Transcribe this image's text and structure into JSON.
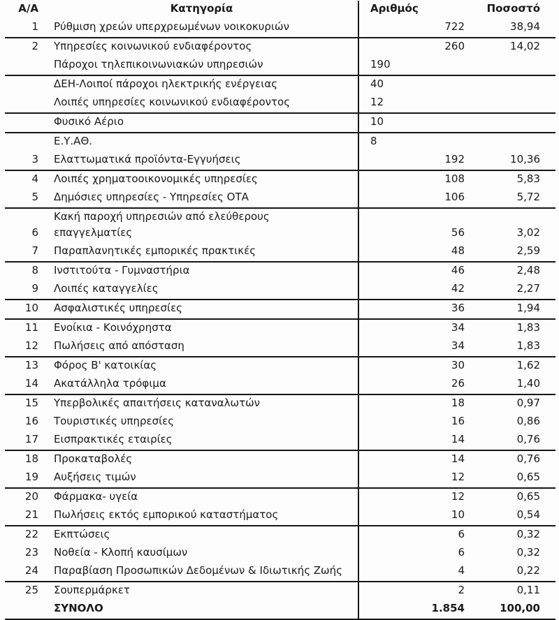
{
  "table": {
    "headers": {
      "aa": "Α/Α",
      "category": "Κατηγορία",
      "number": "Αριθμός",
      "percent": "Ποσοστό"
    },
    "rows": [
      {
        "aa": "1",
        "category": "Ρύθμιση χρεών υπερχρεωμένων νοικοκυριών",
        "number": "722",
        "percent": "38,94",
        "number_align": "right",
        "border_bottom": true
      },
      {
        "aa": "2",
        "category": "Υπηρεσίες κοινωνικού ενδιαφέροντος",
        "number": "260",
        "percent": "14,02",
        "number_align": "right",
        "border_bottom": false
      },
      {
        "aa": "",
        "category": "Πάροχοι τηλεπικοινωνιακών υπηρεσιών",
        "number": "190",
        "percent": "",
        "number_align": "left",
        "border_bottom": true
      },
      {
        "aa": "",
        "category": "ΔΕΗ-Λοιποί πάροχοι ηλεκτρικής ενέργειας",
        "number": "40",
        "percent": "",
        "number_align": "left",
        "border_bottom": false
      },
      {
        "aa": "",
        "category": "Λοιπές υπηρεσίες κοινωνικού ενδιαφέροντος",
        "number": "12",
        "percent": "",
        "number_align": "left",
        "border_bottom": true
      },
      {
        "aa": "",
        "category": "Φυσικό Αέριο",
        "number": "10",
        "percent": "",
        "number_align": "left",
        "border_bottom": true
      },
      {
        "aa": "",
        "category": "Ε.Υ.ΑΘ.",
        "number": "8",
        "percent": "",
        "number_align": "left",
        "border_bottom": false
      },
      {
        "aa": "3",
        "category": "Ελαττωματικά προϊόντα-Εγγυήσεις",
        "number": "192",
        "percent": "10,36",
        "number_align": "right",
        "border_bottom": true
      },
      {
        "aa": "4",
        "category": "Λοιπές χρηματοοικονομικές υπηρεσίες",
        "number": "108",
        "percent": "5,83",
        "number_align": "right",
        "border_bottom": false
      },
      {
        "aa": "5",
        "category": "Δημόσιες υπηρεσίες - Υπηρεσίες ΟΤΑ",
        "number": "106",
        "percent": "5,72",
        "number_align": "right",
        "border_bottom": true
      },
      {
        "aa": "6",
        "category": "Κακή παροχή υπηρεσιών από ελεύθερους\nεπαγγελματίες",
        "number": "56",
        "percent": "3,02",
        "number_align": "right",
        "border_bottom": false
      },
      {
        "aa": "7",
        "category": "Παραπλανητικές εμπορικές πρακτικές",
        "number": "48",
        "percent": "2,59",
        "number_align": "right",
        "border_bottom": true
      },
      {
        "aa": "8",
        "category": "Ινστιτούτα - Γυμναστήρια",
        "number": "46",
        "percent": "2,48",
        "number_align": "right",
        "border_bottom": false
      },
      {
        "aa": "9",
        "category": "Λοιπές καταγγελίες",
        "number": "42",
        "percent": "2,27",
        "number_align": "right",
        "border_bottom": true
      },
      {
        "aa": "10",
        "category": "Ασφαλιστικές υπηρεσίες",
        "number": "36",
        "percent": "1,94",
        "number_align": "right",
        "border_bottom": true
      },
      {
        "aa": "11",
        "category": "Ενοίκια - Κοινόχρηστα",
        "number": "34",
        "percent": "1,83",
        "number_align": "right",
        "border_bottom": false
      },
      {
        "aa": "12",
        "category": "Πωλήσεις από απόσταση",
        "number": "34",
        "percent": "1,83",
        "number_align": "right",
        "border_bottom": true
      },
      {
        "aa": "13",
        "category": "Φόρος Β' κατοικίας",
        "number": "30",
        "percent": "1,62",
        "number_align": "right",
        "border_bottom": false
      },
      {
        "aa": "14",
        "category": "Ακατάλληλα τρόφιμα",
        "number": "26",
        "percent": "1,40",
        "number_align": "right",
        "border_bottom": true
      },
      {
        "aa": "15",
        "category": "Υπερβολικές απαιτήσεις καταναλωτών",
        "number": "18",
        "percent": "0,97",
        "number_align": "right",
        "border_bottom": false
      },
      {
        "aa": "16",
        "category": "Τουριστικές υπηρεσίες",
        "number": "16",
        "percent": "0,86",
        "number_align": "right",
        "border_bottom": false
      },
      {
        "aa": "17",
        "category": "Εισπρακτικές εταιρίες",
        "number": "14",
        "percent": "0,76",
        "number_align": "right",
        "border_bottom": true
      },
      {
        "aa": "18",
        "category": "Προκαταβολές",
        "number": "14",
        "percent": "0,76",
        "number_align": "right",
        "border_bottom": false
      },
      {
        "aa": "19",
        "category": "Αυξήσεις τιμών",
        "number": "12",
        "percent": "0,65",
        "number_align": "right",
        "border_bottom": true
      },
      {
        "aa": "20",
        "category": "Φάρμακα- υγεία",
        "number": "12",
        "percent": "0,65",
        "number_align": "right",
        "border_bottom": false
      },
      {
        "aa": "21",
        "category": "Πωλήσεις εκτός εμπορικού καταστήματος",
        "number": "10",
        "percent": "0,54",
        "number_align": "right",
        "border_bottom": true
      },
      {
        "aa": "22",
        "category": "Εκπτώσεις",
        "number": "6",
        "percent": "0,32",
        "number_align": "right",
        "border_bottom": false
      },
      {
        "aa": "23",
        "category": "Νοθεία - Κλοπή καυσίμων",
        "number": "6",
        "percent": "0,32",
        "number_align": "right",
        "border_bottom": false
      },
      {
        "aa": "24",
        "category": "Παραβίαση Προσωπικών Δεδομένων & Ιδιωτικής Ζωής",
        "number": "4",
        "percent": "0,22",
        "number_align": "right",
        "border_bottom": true
      },
      {
        "aa": "25",
        "category": "Σουπερμάρκετ",
        "number": "2",
        "percent": "0,11",
        "number_align": "right",
        "border_bottom": false
      },
      {
        "aa": "",
        "category": "ΣΥΝΟΛΟ",
        "number": "1.854",
        "percent": "100,00",
        "number_align": "right",
        "border_bottom": true,
        "bold": true,
        "total": true
      }
    ],
    "colors": {
      "text": "#1a1a1a",
      "rule": "#161616",
      "background": "#fdfdfd"
    }
  }
}
